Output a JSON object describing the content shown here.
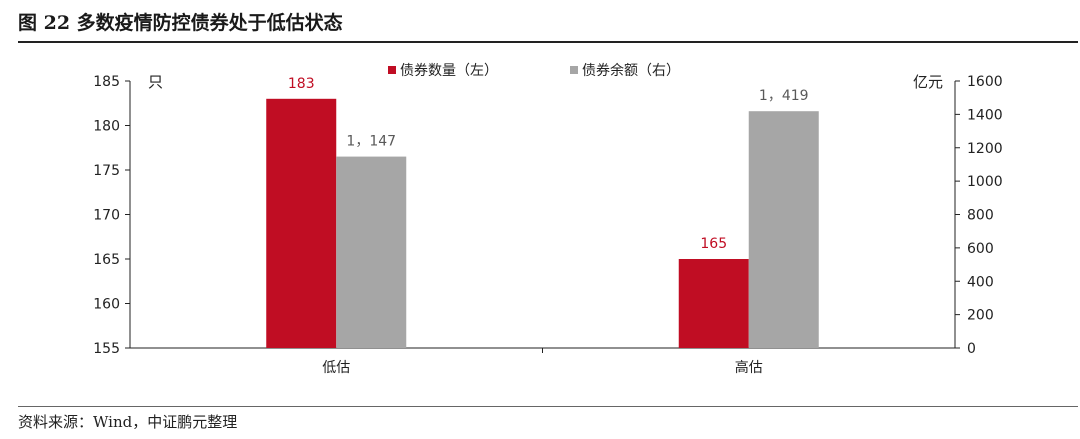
{
  "figure": {
    "title": "图 22    多数疫情防控债券处于低估状态",
    "source": "资料来源：Wind，中证鹏元整理"
  },
  "chart_data": {
    "type": "bar",
    "categories": [
      "低估",
      "高估"
    ],
    "series": [
      {
        "name": "债券数量（左）",
        "values": [
          183,
          165
        ],
        "labels": [
          "183",
          "165"
        ],
        "axis": "left",
        "color": "#c00d23",
        "label_color": "#c00d23"
      },
      {
        "name": "债券余额（右）",
        "values": [
          1147,
          1419
        ],
        "labels": [
          "1，147",
          "1，419"
        ],
        "axis": "right",
        "color": "#a6a6a6",
        "label_color": "#595959"
      }
    ],
    "y_left": {
      "unit": "只",
      "min": 155,
      "max": 185,
      "ticks": [
        155,
        160,
        165,
        170,
        175,
        180,
        185
      ]
    },
    "y_right": {
      "unit": "亿元",
      "min": 0,
      "max": 1600,
      "ticks": [
        0,
        200,
        400,
        600,
        800,
        1000,
        1200,
        1400,
        1600
      ]
    },
    "legend_position": "top-center",
    "grid": false
  }
}
